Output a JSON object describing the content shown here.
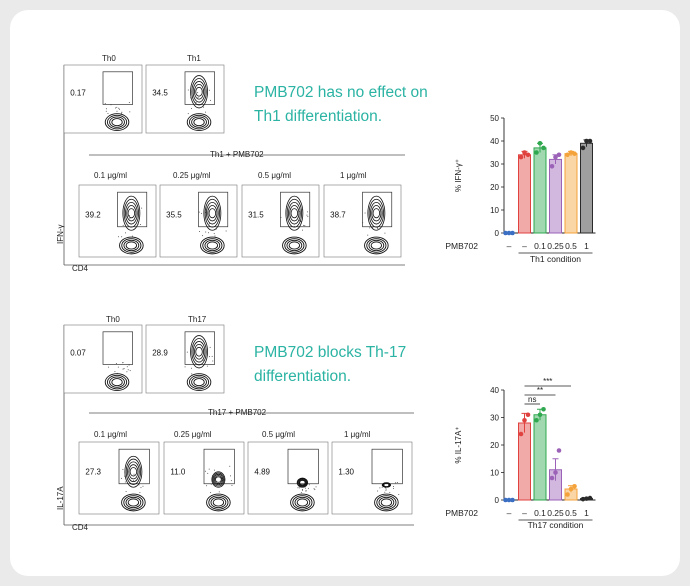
{
  "panels": [
    {
      "headline_lines": [
        "PMB702 has no effect on",
        "Th1 differentiation."
      ],
      "flow": {
        "y_axis_label": "IFN-γ",
        "x_axis_label": "CD4",
        "treatment_label": "Th1 + PMB702",
        "top_plots": [
          {
            "label": "Th0",
            "value": "0.17",
            "level": 0
          },
          {
            "label": "Th1",
            "value": "34.5",
            "level": 1
          }
        ],
        "bottom_plots": [
          {
            "label": "0.1 μg/ml",
            "value": "39.2",
            "level": 1
          },
          {
            "label": "0.25 μg/ml",
            "value": "35.5",
            "level": 1
          },
          {
            "label": "0.5 μg/ml",
            "value": "31.5",
            "level": 1
          },
          {
            "label": "1 μg/ml",
            "value": "38.7",
            "level": 1
          }
        ]
      },
      "chart_data": {
        "type": "bar",
        "ylabel": "% IFN-γ⁺",
        "ylim": [
          0,
          50
        ],
        "yticks": [
          0,
          10,
          20,
          30,
          40,
          50
        ],
        "row_label": "PMB702",
        "categories": [
          "–",
          "–",
          "0.1",
          "0.25",
          "0.5",
          "1"
        ],
        "group_label": "Th1 condition",
        "values": [
          0,
          34,
          37,
          32,
          34.5,
          39
        ],
        "errors": [
          0,
          1.5,
          2,
          2,
          1,
          1.5
        ],
        "points": [
          [
            0,
            0,
            0
          ],
          [
            33,
            35,
            34
          ],
          [
            35,
            39,
            37
          ],
          [
            29,
            33,
            34
          ],
          [
            34,
            35,
            34.5
          ],
          [
            37,
            40,
            40
          ]
        ],
        "colors": [
          "#3a6fc4",
          "#e0433f",
          "#2fa84f",
          "#9b62b8",
          "#f4a23a",
          "#2a2a2a"
        ],
        "significance": []
      }
    },
    {
      "headline_lines": [
        "PMB702 blocks Th-17",
        "differentiation."
      ],
      "flow": {
        "y_axis_label": "IL-17A",
        "x_axis_label": "CD4",
        "treatment_label": "Th17 + PMB702",
        "top_plots": [
          {
            "label": "Th0",
            "value": "0.07",
            "level": 0
          },
          {
            "label": "Th17",
            "value": "28.9",
            "level": 1
          }
        ],
        "bottom_plots": [
          {
            "label": "0.1 μg/ml",
            "value": "27.3",
            "level": 0.9
          },
          {
            "label": "0.25 μg/ml",
            "value": "11.0",
            "level": 0.4
          },
          {
            "label": "0.5 μg/ml",
            "value": "4.89",
            "level": 0.2
          },
          {
            "label": "1 μg/ml",
            "value": "1.30",
            "level": 0.05
          }
        ]
      },
      "chart_data": {
        "type": "bar",
        "ylabel": "% IL-17A⁺",
        "ylim": [
          0,
          40
        ],
        "yticks": [
          0,
          10,
          20,
          30,
          40
        ],
        "row_label": "PMB702",
        "categories": [
          "–",
          "–",
          "0.1",
          "0.25",
          "0.5",
          "1"
        ],
        "group_label": "Th17 condition",
        "values": [
          0,
          28,
          31,
          11,
          4,
          0.5
        ],
        "errors": [
          0,
          3.5,
          2,
          4,
          1.2,
          0.3
        ],
        "points": [
          [
            0,
            0,
            0
          ],
          [
            24,
            29,
            31
          ],
          [
            29,
            31,
            33
          ],
          [
            8,
            10,
            18
          ],
          [
            2,
            4,
            5
          ],
          [
            0.3,
            0.5,
            0.7
          ]
        ],
        "colors": [
          "#3a6fc4",
          "#e0433f",
          "#2fa84f",
          "#9b62b8",
          "#f4a23a",
          "#2a2a2a"
        ],
        "significance": [
          {
            "from": 1,
            "to": 2,
            "label": "ns"
          },
          {
            "from": 1,
            "to": 3,
            "label": "**"
          },
          {
            "from": 1,
            "to": 4,
            "label": "***"
          }
        ]
      }
    }
  ]
}
